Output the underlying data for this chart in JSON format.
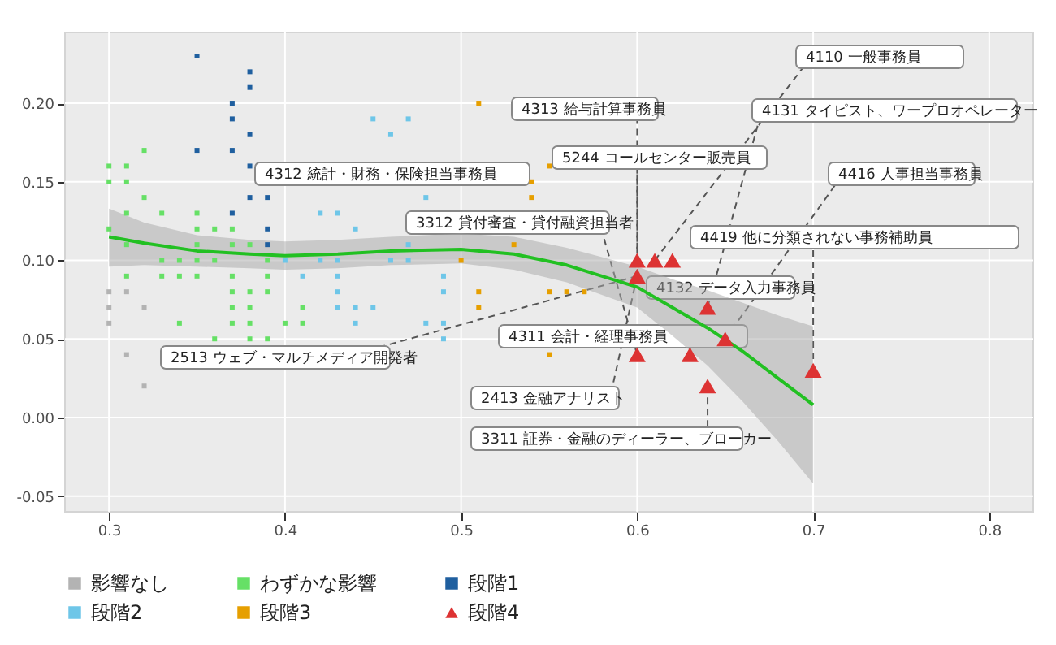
{
  "chart_data": {
    "type": "scatter",
    "xlim": [
      0.275,
      0.825
    ],
    "xticks": [
      0.3,
      0.4,
      0.5,
      0.6,
      0.7,
      0.8
    ],
    "ylim": [
      -0.06,
      0.245
    ],
    "yticks": [
      -0.05,
      {
        "value": 0,
        "label": "0.00"
      },
      0.05,
      {
        "value": 0.1,
        "label": "0.10"
      },
      0.15,
      {
        "value": 0.2,
        "label": "0.20"
      }
    ],
    "grid": true,
    "legend": "bottom",
    "series": [
      {
        "name": "影響なし",
        "color": "#b3b3b3",
        "marker": "square",
        "x": [
          0.3,
          0.3,
          0.3,
          0.31,
          0.32,
          0.31,
          0.32
        ],
        "values": [
          0.08,
          0.07,
          0.06,
          0.08,
          0.07,
          0.04,
          0.02
        ]
      },
      {
        "name": "わずかな影響",
        "color": "#66e066",
        "marker": "square",
        "x": [
          0.3,
          0.3,
          0.3,
          0.31,
          0.31,
          0.32,
          0.32,
          0.31,
          0.31,
          0.31,
          0.33,
          0.33,
          0.33,
          0.34,
          0.34,
          0.34,
          0.35,
          0.35,
          0.35,
          0.35,
          0.35,
          0.36,
          0.36,
          0.36,
          0.37,
          0.37,
          0.37,
          0.37,
          0.37,
          0.37,
          0.38,
          0.38,
          0.38,
          0.38,
          0.38,
          0.39,
          0.39,
          0.39,
          0.39,
          0.4,
          0.41,
          0.41
        ],
        "values": [
          0.16,
          0.15,
          0.12,
          0.16,
          0.15,
          0.17,
          0.14,
          0.13,
          0.11,
          0.09,
          0.13,
          0.1,
          0.09,
          0.1,
          0.09,
          0.06,
          0.13,
          0.12,
          0.11,
          0.1,
          0.09,
          0.12,
          0.1,
          0.05,
          0.12,
          0.11,
          0.09,
          0.08,
          0.07,
          0.06,
          0.11,
          0.08,
          0.07,
          0.06,
          0.05,
          0.1,
          0.09,
          0.08,
          0.05,
          0.06,
          0.07,
          0.06
        ]
      },
      {
        "name": "段階1",
        "color": "#1f5f9f",
        "marker": "square",
        "x": [
          0.35,
          0.35,
          0.37,
          0.37,
          0.37,
          0.37,
          0.38,
          0.38,
          0.38,
          0.38,
          0.38,
          0.39,
          0.39,
          0.39
        ],
        "values": [
          0.23,
          0.17,
          0.2,
          0.19,
          0.17,
          0.13,
          0.22,
          0.21,
          0.18,
          0.16,
          0.14,
          0.14,
          0.12,
          0.11
        ]
      },
      {
        "name": "段階2",
        "color": "#6ec6e8",
        "marker": "square",
        "x": [
          0.4,
          0.41,
          0.42,
          0.42,
          0.43,
          0.43,
          0.43,
          0.43,
          0.43,
          0.44,
          0.44,
          0.44,
          0.45,
          0.45,
          0.46,
          0.46,
          0.47,
          0.47,
          0.47,
          0.48,
          0.48,
          0.49,
          0.49,
          0.49,
          0.49
        ],
        "values": [
          0.1,
          0.09,
          0.13,
          0.1,
          0.13,
          0.1,
          0.09,
          0.08,
          0.07,
          0.12,
          0.07,
          0.06,
          0.19,
          0.07,
          0.18,
          0.1,
          0.19,
          0.11,
          0.1,
          0.14,
          0.06,
          0.09,
          0.08,
          0.06,
          0.05
        ]
      },
      {
        "name": "段階3",
        "color": "#e69f00",
        "marker": "square",
        "x": [
          0.51,
          0.55,
          0.54,
          0.54,
          0.53,
          0.5,
          0.51,
          0.51,
          0.55,
          0.56,
          0.57,
          0.55
        ],
        "values": [
          0.2,
          0.16,
          0.15,
          0.14,
          0.11,
          0.1,
          0.08,
          0.07,
          0.08,
          0.08,
          0.08,
          0.04
        ]
      },
      {
        "name": "段階4",
        "color": "#dd3333",
        "marker": "triangle",
        "x": [
          0.6,
          0.61,
          0.62,
          0.6,
          0.6,
          0.63,
          0.64,
          0.65,
          0.64,
          0.7
        ],
        "values": [
          0.1,
          0.1,
          0.1,
          0.09,
          0.04,
          0.04,
          0.07,
          0.05,
          0.02,
          0.03
        ]
      },
      {
        "type": "line",
        "color": "#22c022",
        "x": [
          0.3,
          0.32,
          0.35,
          0.38,
          0.4,
          0.43,
          0.46,
          0.5,
          0.53,
          0.56,
          0.58,
          0.6,
          0.62,
          0.64,
          0.66,
          0.68,
          0.7
        ],
        "values": [
          0.115,
          0.111,
          0.106,
          0.104,
          0.103,
          0.104,
          0.106,
          0.107,
          0.104,
          0.097,
          0.09,
          0.083,
          0.07,
          0.057,
          0.042,
          0.025,
          0.008
        ],
        "lower": [
          0.096,
          0.097,
          0.096,
          0.095,
          0.094,
          0.095,
          0.097,
          0.098,
          0.094,
          0.086,
          0.078,
          0.07,
          0.052,
          0.033,
          0.01,
          -0.015,
          -0.042
        ],
        "upper": [
          0.133,
          0.124,
          0.116,
          0.113,
          0.112,
          0.113,
          0.115,
          0.117,
          0.115,
          0.108,
          0.102,
          0.096,
          0.088,
          0.081,
          0.073,
          0.065,
          0.058
        ]
      }
    ],
    "annotations": [
      {
        "text": "4110 一般事務員",
        "x": 0.61,
        "y": 0.1
      },
      {
        "text": "4313 給与計算事務員",
        "x": 0.6,
        "y": 0.1
      },
      {
        "text": "4131 タイピスト、ワープロオペレーター",
        "x": 0.64,
        "y": 0.07
      },
      {
        "text": "5244 コールセンター販売員",
        "x": 0.6,
        "y": 0.09
      },
      "4312 統計・財務・保険担当事務員",
      {
        "text": "4416 人事担当事務員",
        "x": 0.65,
        "y": 0.05
      },
      {
        "text": "3312 貸付審査・貸付融資担当者",
        "x": 0.6,
        "y": 0.04
      },
      {
        "text": "4419 他に分類されない事務補助員",
        "x": 0.7,
        "y": 0.03
      },
      {
        "text": "2413 金融アナリスト",
        "x": 0.6,
        "y": 0.09
      },
      {
        "text": "4132 データ入力事務員",
        "x": 0.64,
        "y": 0.07
      },
      {
        "text": "4311 会計・経理事務員",
        "x": 0.63,
        "y": 0.04
      },
      {
        "text": "3311 証券・金融のディーラー、ブローカー",
        "x": 0.64,
        "y": 0.02
      },
      {
        "text": "2513 ウェブ・マルチメディア開発者",
        "x": 0.6,
        "y": 0.09
      }
    ]
  }
}
